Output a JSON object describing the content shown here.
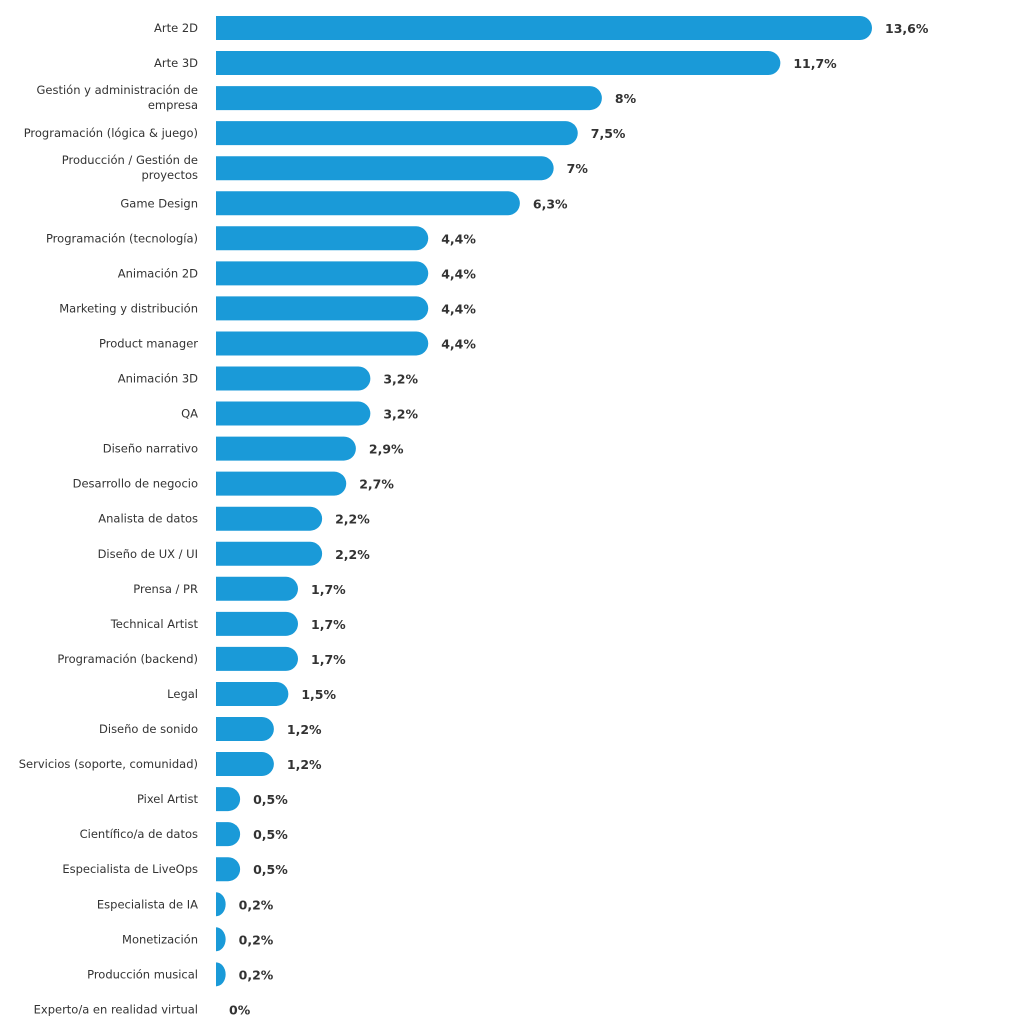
{
  "chart_data": {
    "type": "bar",
    "orientation": "horizontal",
    "bar_color": "#1a9ad8",
    "categories": [
      [
        "Arte 2D"
      ],
      [
        "Arte 3D"
      ],
      [
        "Gestión y administración de",
        "empresa"
      ],
      [
        "Programación (lógica & juego)"
      ],
      [
        "Producción / Gestión de",
        "proyectos"
      ],
      [
        "Game Design"
      ],
      [
        "Programación (tecnología)"
      ],
      [
        "Animación 2D"
      ],
      [
        "Marketing y distribución"
      ],
      [
        "Product manager"
      ],
      [
        "Animación 3D"
      ],
      [
        "QA"
      ],
      [
        "Diseño narrativo"
      ],
      [
        "Desarrollo de negocio"
      ],
      [
        "Analista de datos"
      ],
      [
        "Diseño de UX / UI"
      ],
      [
        "Prensa / PR"
      ],
      [
        "Technical Artist"
      ],
      [
        "Programación (backend)"
      ],
      [
        "Legal"
      ],
      [
        "Diseño de sonido"
      ],
      [
        "Servicios (soporte, comunidad)"
      ],
      [
        "Pixel Artist"
      ],
      [
        "Científico/a de datos"
      ],
      [
        "Especialista de LiveOps"
      ],
      [
        "Especialista de IA"
      ],
      [
        "Monetización"
      ],
      [
        "Producción musical"
      ],
      [
        "Experto/a en realidad virtual"
      ]
    ],
    "values": [
      13.6,
      11.7,
      8,
      7.5,
      7,
      6.3,
      4.4,
      4.4,
      4.4,
      4.4,
      3.2,
      3.2,
      2.9,
      2.7,
      2.2,
      2.2,
      1.7,
      1.7,
      1.7,
      1.5,
      1.2,
      1.2,
      0.5,
      0.5,
      0.5,
      0.2,
      0.2,
      0.2,
      0
    ],
    "value_labels": [
      "13,6%",
      "11,7%",
      "8%",
      "7,5%",
      "7%",
      "6,3%",
      "4,4%",
      "4,4%",
      "4,4%",
      "4,4%",
      "3,2%",
      "3,2%",
      "2,9%",
      "2,7%",
      "2,2%",
      "2,2%",
      "1,7%",
      "1,7%",
      "1,7%",
      "1,5%",
      "1,2%",
      "1,2%",
      "0,5%",
      "0,5%",
      "0,5%",
      "0,2%",
      "0,2%",
      "0,2%",
      "0%"
    ],
    "xlim": [
      0,
      13.6
    ],
    "grid": false,
    "legend": "none"
  }
}
